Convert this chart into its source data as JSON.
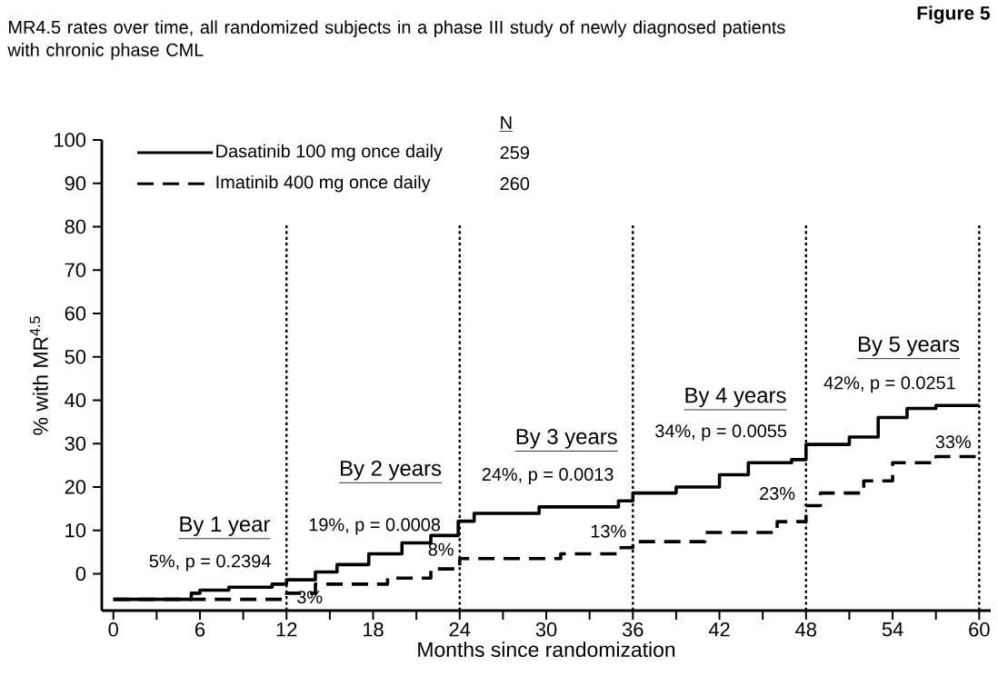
{
  "chart_data": {
    "type": "step",
    "title": "MR4.5 rates over time, all randomized subjects in a phase III study of newly diagnosed patients with chronic phase CML",
    "xlabel": "Months since randomization",
    "ylabel": "% with MR$^{4.5}$",
    "legend_title": "N",
    "legend": "top left",
    "xlim": [
      -0.8,
      60.8
    ],
    "ylim": [
      -8.5,
      100
    ],
    "xticks": [
      0,
      {
        "value": 3,
        "label": null
      },
      6,
      {
        "value": 9,
        "label": null
      },
      12,
      {
        "value": 15,
        "label": null
      },
      18,
      {
        "value": 21,
        "label": null
      },
      24,
      {
        "value": 27,
        "label": null
      },
      30,
      {
        "value": 33,
        "label": null
      },
      36,
      {
        "value": 39,
        "label": null
      },
      42,
      {
        "value": 45,
        "label": null
      },
      48,
      {
        "value": 51,
        "label": null
      },
      54,
      {
        "value": 57,
        "label": null
      },
      60
    ],
    "yticks": [
      0,
      10,
      20,
      30,
      40,
      50,
      60,
      70,
      80,
      90,
      100
    ],
    "series": [
      {
        "name": "Dasatinib 100 mg once daily",
        "color": "#000000",
        "line_style": "solid",
        "x": [
          0,
          5.4,
          6,
          8,
          11,
          12,
          14,
          15.5,
          17.7,
          20,
          22,
          23.9,
          25,
          29.5,
          35,
          36,
          39,
          42,
          44,
          47,
          48,
          51,
          53,
          55,
          57,
          60
        ],
        "values": [
          -5.9,
          -4.5,
          -3.8,
          -3.1,
          -2.4,
          -1.4,
          0.4,
          2.1,
          4.6,
          7.1,
          8.8,
          12.1,
          13.9,
          15.4,
          16.8,
          18.6,
          20,
          22.8,
          25.6,
          26.3,
          29.8,
          31.5,
          36,
          38.1,
          38.8,
          38.8
        ]
      },
      {
        "name": "Imatinib 400 mg once daily",
        "color": "#000000",
        "line_style": "dashed",
        "x": [
          0,
          12,
          14,
          19,
          22,
          24,
          31,
          35,
          36,
          41,
          46,
          48,
          49,
          52,
          54,
          57,
          60
        ],
        "values": [
          -5.9,
          -4.5,
          -2.4,
          -1.0,
          1.1,
          3.5,
          4.6,
          6.0,
          7.4,
          9.5,
          12.0,
          15.7,
          18.6,
          21.4,
          25.6,
          27.0,
          27.0
        ]
      }
    ],
    "ref_lines": [
      {
        "axis": "x",
        "value": 12,
        "line_style": "dotted"
      },
      {
        "axis": "x",
        "value": 24,
        "line_style": "dotted"
      },
      {
        "axis": "x",
        "value": 36,
        "line_style": "dotted"
      },
      {
        "axis": "x",
        "value": 48,
        "line_style": "dotted"
      },
      {
        "axis": "x",
        "value": 60,
        "line_style": "dotted"
      }
    ],
    "annotations": [
      "Figure 5",
      "259",
      "260",
      "By 1 year",
      "5%, p = 0.2394",
      "3%",
      "By 2 years",
      "19%, p = 0.0008",
      "8%",
      "By 3 years",
      "24%, p = 0.0013",
      "13%",
      "By 4 years",
      "34%, p = 0.0055",
      "23%",
      "By 5 years",
      "42%, p = 0.0251",
      "33%"
    ]
  }
}
